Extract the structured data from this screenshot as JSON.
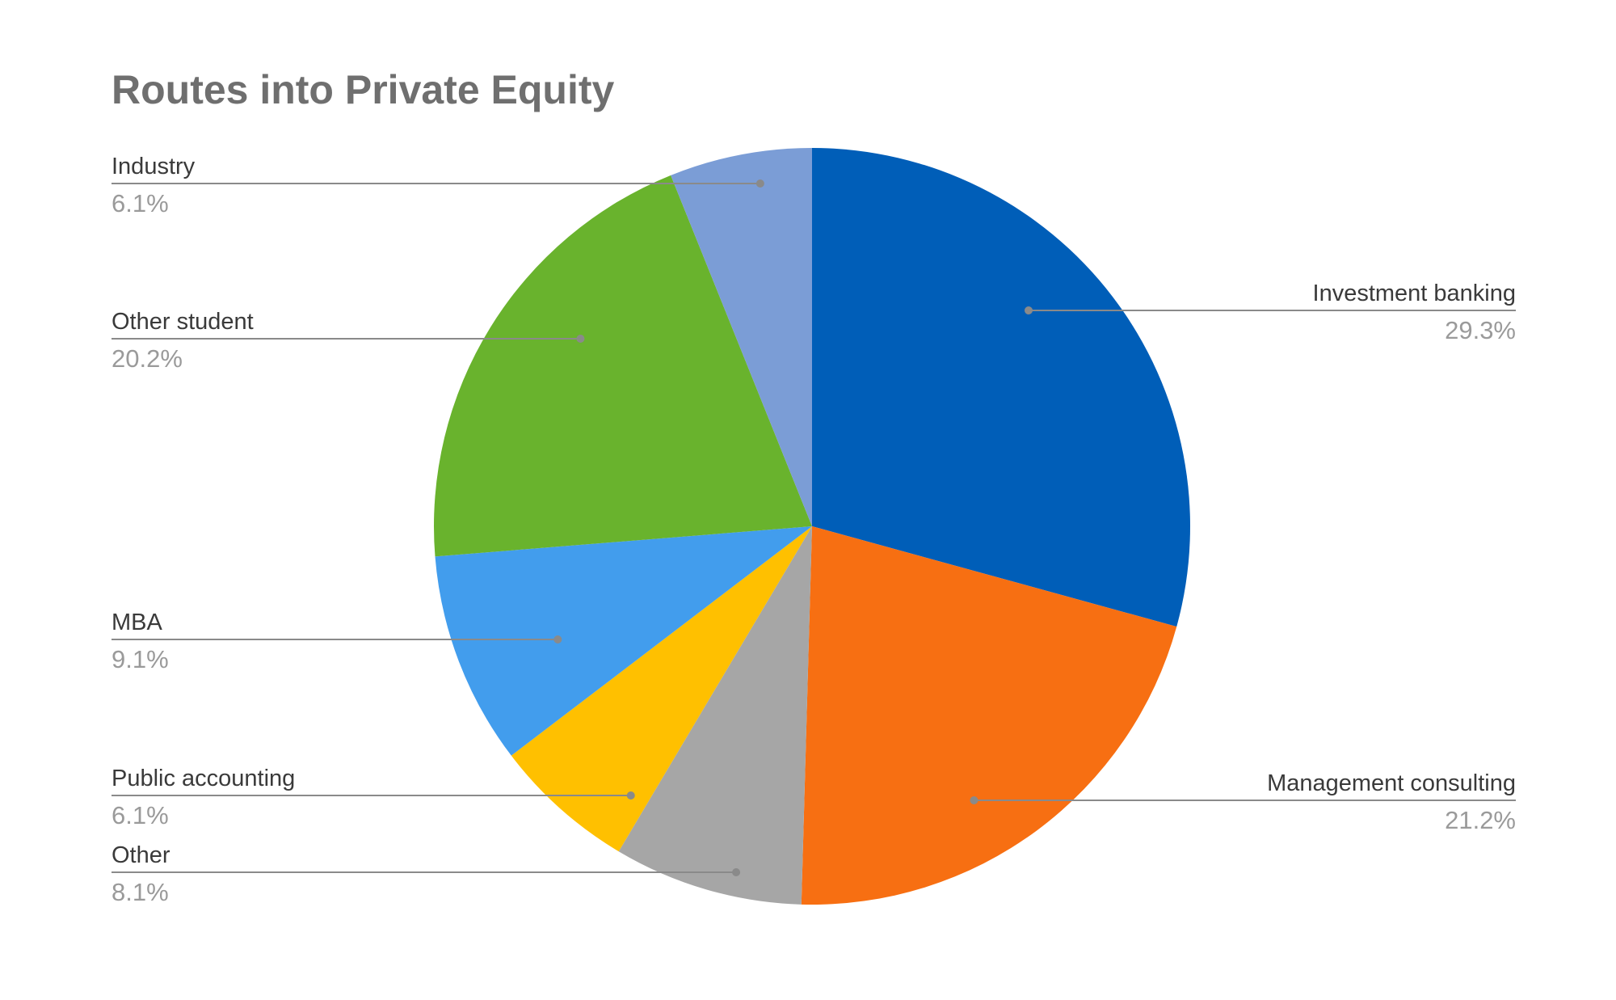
{
  "chart_data": {
    "type": "pie",
    "title": "Routes into Private Equity",
    "start_angle_deg": 0,
    "direction": "clockwise",
    "legend": "none",
    "slices": [
      {
        "label": "Investment banking",
        "pct_label": "29.3%",
        "value": 29.3,
        "color": "#005eb8"
      },
      {
        "label": "Management consulting",
        "pct_label": "21.2%",
        "value": 21.2,
        "color": "#f76f12"
      },
      {
        "label": "Other",
        "pct_label": "8.1%",
        "value": 8.1,
        "color": "#a6a6a6"
      },
      {
        "label": "Public accounting",
        "pct_label": "6.1%",
        "value": 6.1,
        "color": "#ffc000"
      },
      {
        "label": "MBA",
        "pct_label": "9.1%",
        "value": 9.1,
        "color": "#429ded"
      },
      {
        "label": "Other student",
        "pct_label": "20.2%",
        "value": 20.2,
        "color": "#69b32d"
      },
      {
        "label": "Industry",
        "pct_label": "6.1%",
        "value": 6.1,
        "color": "#7b9dd6"
      }
    ]
  }
}
